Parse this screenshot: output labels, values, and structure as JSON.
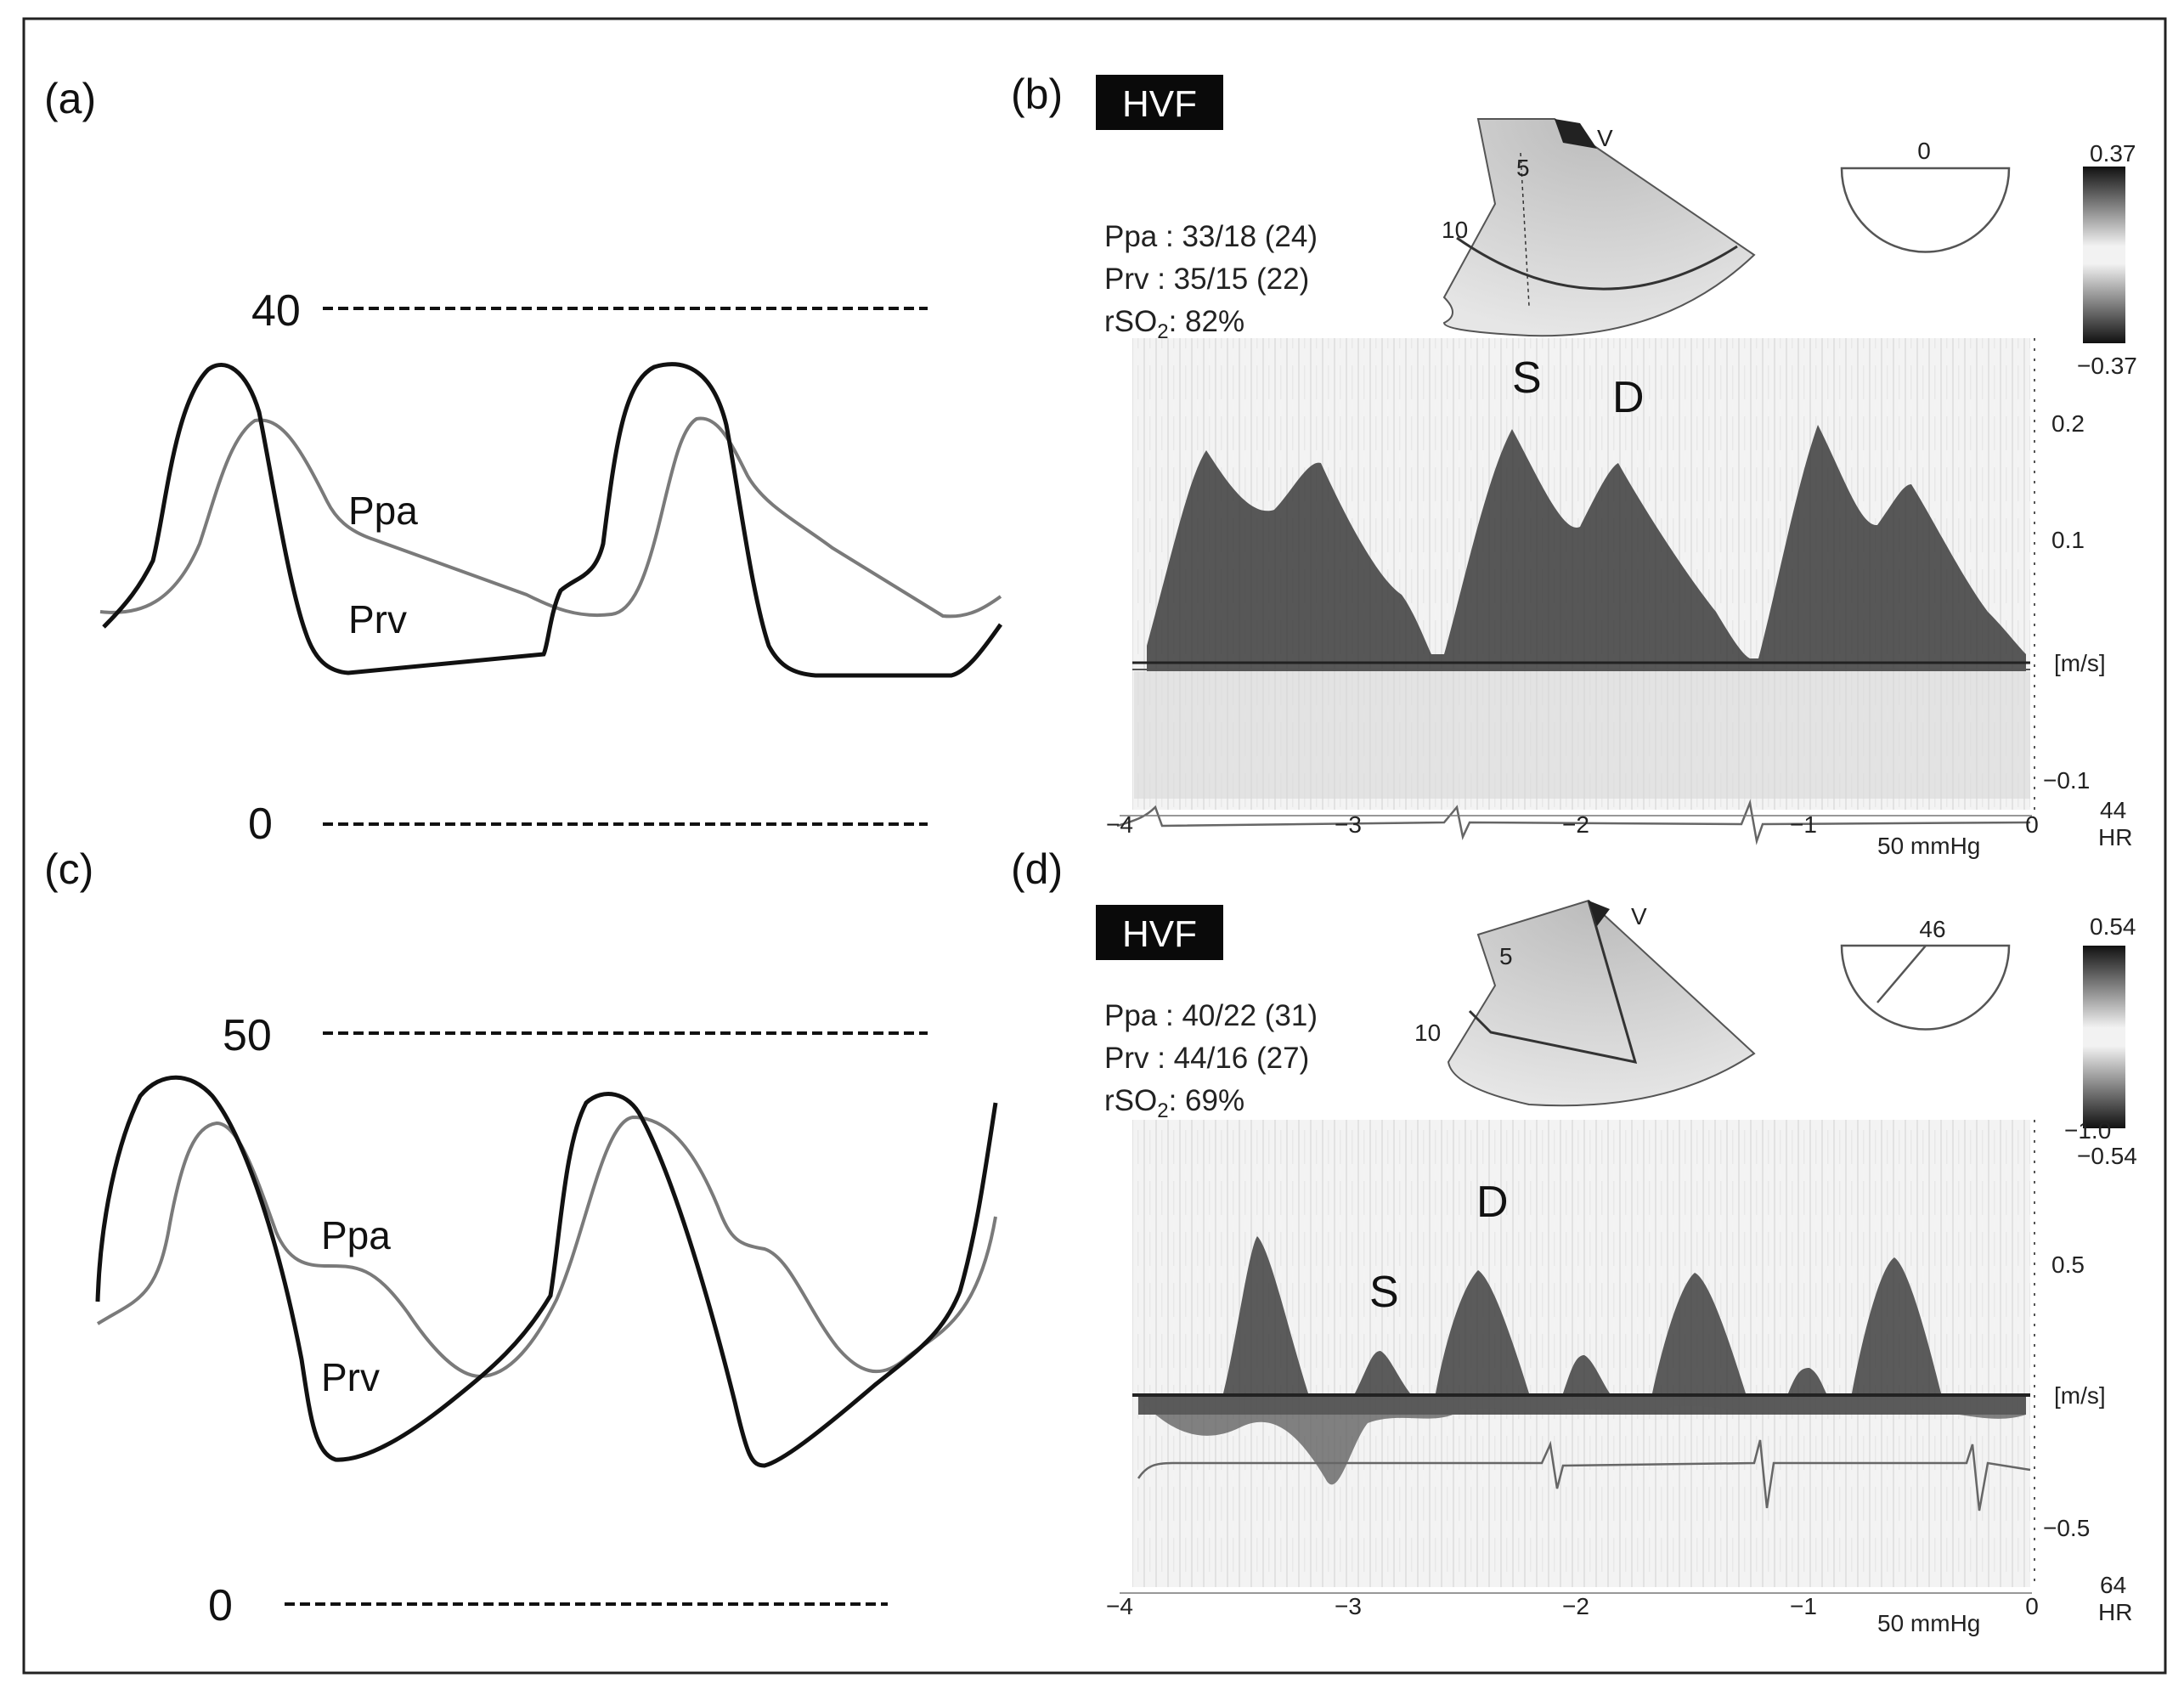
{
  "panels": {
    "a": {
      "label": "(a)",
      "level_high": "40",
      "level_zero": "0",
      "curve_labels": {
        "ppa": "Ppa",
        "prv": "Prv"
      }
    },
    "b": {
      "label": "(b)",
      "badge": "HVF",
      "info": {
        "ppa": "Ppa : 33/18 (24)",
        "prv": "Prv : 35/15 (22)",
        "rso2": "rSO",
        "rso2_sub": "2",
        "rso2_val": ": 82%"
      },
      "sector_depths": [
        "5",
        "10"
      ],
      "sector_marker": "V",
      "angle": "0",
      "color_scale": {
        "top": "0.37",
        "bottom": "−0.37"
      },
      "wave_labels": {
        "s": "S",
        "d": "D"
      },
      "velocity_ticks": [
        "0.2",
        "0.1",
        "[m/s]",
        "−0.1"
      ],
      "time_ticks": [
        "−4",
        "−3",
        "−2",
        "−1",
        "0"
      ],
      "pressure_scale": "50 mmHg",
      "hr_value": "44",
      "hr_label": "HR"
    },
    "c": {
      "label": "(c)",
      "level_high": "50",
      "level_zero": "0",
      "curve_labels": {
        "ppa": "Ppa",
        "prv": "Prv"
      }
    },
    "d": {
      "label": "(d)",
      "badge": "HVF",
      "info": {
        "ppa": "Ppa : 40/22 (31)",
        "prv": "Prv : 44/16 (27)",
        "rso2": "rSO",
        "rso2_sub": "2",
        "rso2_val": ": 69%"
      },
      "sector_depths": [
        "5",
        "10"
      ],
      "sector_marker": "V",
      "angle": "46",
      "color_scale": {
        "top": "0.54",
        "bottom": "−1.0",
        "bottom2": "−0.54"
      },
      "wave_labels": {
        "s": "S",
        "d": "D"
      },
      "velocity_ticks": [
        "0.5",
        "[m/s]",
        "−0.5"
      ],
      "time_ticks": [
        "−4",
        "−3",
        "−2",
        "−1",
        "0"
      ],
      "pressure_scale": "50 mmHg",
      "hr_value": "64",
      "hr_label": "HR"
    }
  }
}
